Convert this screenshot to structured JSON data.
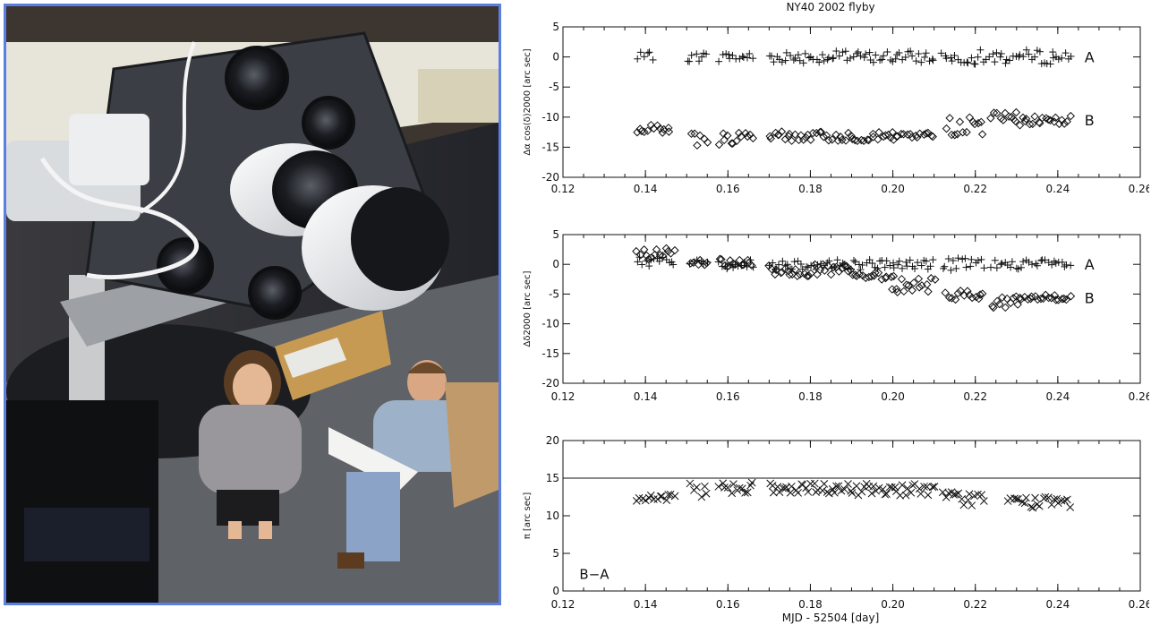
{
  "photo": {
    "description_icon": "observatory-photo"
  },
  "chart_data": [
    {
      "type": "scatter",
      "title": "NY40 2002 flyby",
      "xlabel": "",
      "ylabel": "Δα cos(δ)2000 [arc sec]",
      "xlim": [
        0.12,
        0.26
      ],
      "ylim": [
        -20,
        5
      ],
      "xticks": [
        "0.12",
        "0.14",
        "0.16",
        "0.18",
        "0.20",
        "0.22",
        "0.24",
        "0.26"
      ],
      "yticks": [
        "5",
        "0",
        "-5",
        "-10",
        "-15",
        "-20"
      ],
      "series": [
        {
          "name": "A",
          "marker": "plus",
          "segments": [
            [
              0.138,
              0.142,
              0.147,
              0.0,
              0.8
            ],
            [
              0.15,
              0.155,
              0.0,
              0.8
            ],
            [
              0.158,
              0.166,
              0.0,
              0.8
            ],
            [
              0.17,
              0.21,
              0.0,
              1.0
            ],
            [
              0.212,
              0.243,
              0.0,
              1.2
            ]
          ]
        },
        {
          "name": "B",
          "marker": "diamond",
          "segments": [
            [
              0.138,
              0.146,
              -12.0,
              0.7
            ],
            [
              0.151,
              0.155,
              -13.5,
              1.3
            ],
            [
              0.158,
              0.166,
              -13.6,
              1.0
            ],
            [
              0.17,
              0.2,
              -13.2,
              0.8
            ],
            [
              0.2,
              0.21,
              -13.0,
              0.5
            ],
            [
              0.213,
              0.222,
              -11.5,
              1.5
            ],
            [
              0.224,
              0.23,
              -10.0,
              0.8
            ],
            [
              0.23,
              0.243,
              -10.5,
              0.9
            ]
          ]
        }
      ]
    },
    {
      "type": "scatter",
      "title": "",
      "xlabel": "",
      "ylabel": "Δδ2000 [arc sec]",
      "xlim": [
        0.12,
        0.26
      ],
      "ylim": [
        -20,
        5
      ],
      "xticks": [
        "0.12",
        "0.14",
        "0.16",
        "0.18",
        "0.20",
        "0.22",
        "0.24",
        "0.26"
      ],
      "yticks": [
        "5",
        "0",
        "-5",
        "-10",
        "-15",
        "-20"
      ],
      "series": [
        {
          "name": "A",
          "marker": "plus",
          "segments": [
            [
              0.138,
              0.147,
              0.5,
              0.8
            ],
            [
              0.151,
              0.155,
              0.2,
              0.6
            ],
            [
              0.158,
              0.166,
              0.0,
              0.8
            ],
            [
              0.17,
              0.21,
              0.0,
              0.9
            ],
            [
              0.212,
              0.222,
              0.0,
              1.2
            ],
            [
              0.224,
              0.243,
              0.0,
              0.8
            ]
          ]
        },
        {
          "name": "B",
          "marker": "diamond",
          "segments": [
            [
              0.138,
              0.147,
              1.5,
              1.2
            ],
            [
              0.151,
              0.155,
              0.3,
              0.6
            ],
            [
              0.158,
              0.166,
              0.0,
              0.9
            ],
            [
              0.17,
              0.19,
              -1.0,
              1.0
            ],
            [
              0.19,
              0.2,
              -2.0,
              0.6
            ],
            [
              0.2,
              0.21,
              -3.5,
              1.2
            ],
            [
              0.213,
              0.222,
              -5.0,
              1.0
            ],
            [
              0.224,
              0.23,
              -6.5,
              1.3
            ],
            [
              0.23,
              0.243,
              -5.6,
              0.5
            ]
          ]
        }
      ]
    },
    {
      "type": "scatter",
      "title": "",
      "xlabel": "MJD - 52504 [day]",
      "ylabel": "π [arc sec]",
      "xlim": [
        0.12,
        0.26
      ],
      "ylim": [
        0,
        20
      ],
      "xticks": [
        "0.12",
        "0.14",
        "0.16",
        "0.18",
        "0.20",
        "0.22",
        "0.24",
        "0.26"
      ],
      "yticks": [
        "20",
        "15",
        "10",
        "5",
        "0"
      ],
      "hline": 15,
      "annotation": "B−A",
      "series": [
        {
          "name": "",
          "marker": "x",
          "segments": [
            [
              0.138,
              0.147,
              12.3,
              0.6
            ],
            [
              0.151,
              0.155,
              13.3,
              1.0
            ],
            [
              0.158,
              0.166,
              13.8,
              0.8
            ],
            [
              0.17,
              0.21,
              13.5,
              0.8
            ],
            [
              0.212,
              0.222,
              12.3,
              1.0
            ],
            [
              0.228,
              0.243,
              11.8,
              0.8
            ]
          ]
        }
      ]
    }
  ],
  "series_labels": {
    "a": "A",
    "b": "B"
  }
}
